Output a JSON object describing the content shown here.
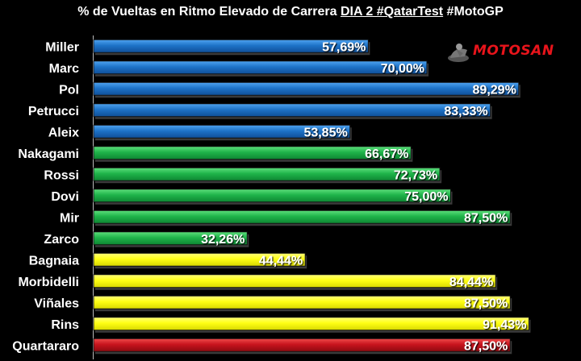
{
  "title": {
    "prefix": "% de Vueltas en Ritmo Elevado de Carrera ",
    "underlined": "DIA 2 #QatarTest",
    "suffix": "  #MotoGP"
  },
  "logo": {
    "text": "MOTOSAN",
    "icon": "motorbike-rider-icon"
  },
  "colors": {
    "blue": "#1E73C8",
    "green": "#1FB44A",
    "yellow": "#FFFF14",
    "red": "#C8141E",
    "background": "#000000"
  },
  "chart_data": {
    "type": "bar",
    "orientation": "horizontal",
    "xlim": [
      0,
      100
    ],
    "grid": false,
    "categories": [
      "Miller",
      "Marc",
      "Pol",
      "Petrucci",
      "Aleix",
      "Nakagami",
      "Rossi",
      "Dovi",
      "Mir",
      "Zarco",
      "Bagnaia",
      "Morbidelli",
      "Viñales",
      "Rins",
      "Quartararo"
    ],
    "values": [
      57.69,
      70.0,
      89.29,
      83.33,
      53.85,
      66.67,
      72.73,
      75.0,
      87.5,
      32.26,
      44.44,
      84.44,
      87.5,
      91.43,
      87.5
    ],
    "value_labels": [
      "57,69%",
      "70,00%",
      "89,29%",
      "83,33%",
      "53,85%",
      "66,67%",
      "72,73%",
      "75,00%",
      "87,50%",
      "32,26%",
      "44,44%",
      "84,44%",
      "87,50%",
      "91,43%",
      "87,50%"
    ],
    "bar_colors": [
      "blue",
      "blue",
      "blue",
      "blue",
      "blue",
      "green",
      "green",
      "green",
      "green",
      "green",
      "yellow",
      "yellow",
      "yellow",
      "yellow",
      "red"
    ]
  }
}
